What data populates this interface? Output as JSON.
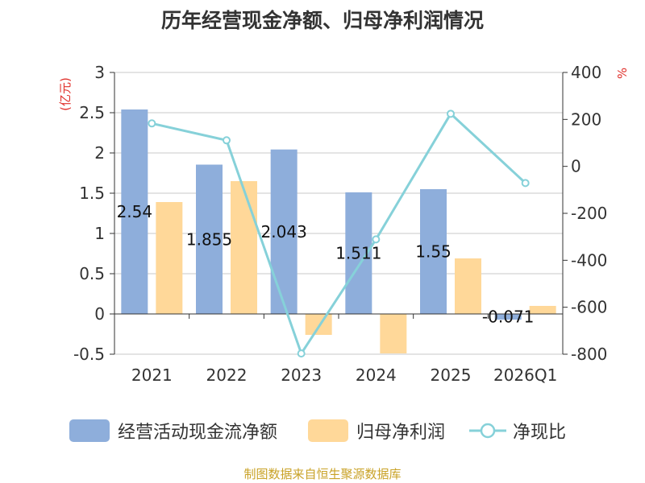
{
  "chart_data": {
    "type": "bar+line",
    "title": "历年经营现金净额、归母净利润情况",
    "categories": [
      "2021",
      "2022",
      "2023",
      "2024",
      "2025",
      "2026Q1"
    ],
    "series": [
      {
        "name": "经营活动现金流净额",
        "type": "bar",
        "axis": "left",
        "color": "#8eaedb",
        "values": [
          2.54,
          1.855,
          2.043,
          1.511,
          1.55,
          -0.071
        ],
        "labels": [
          "2.54",
          "1.855",
          "2.043",
          "1.511",
          "1.55",
          "-0.071"
        ]
      },
      {
        "name": "归母净利润",
        "type": "bar",
        "axis": "left",
        "color": "#ffd899",
        "values": [
          1.39,
          1.65,
          -0.26,
          -0.49,
          0.69,
          0.1
        ]
      },
      {
        "name": "净现比",
        "type": "line",
        "axis": "right",
        "color": "#86d1d9",
        "values": [
          183,
          111,
          -797,
          -311,
          224,
          -71
        ]
      }
    ],
    "left_axis": {
      "unit_label": "(亿元)",
      "min": -0.5,
      "max": 3,
      "ticks": [
        "-0.5",
        "0",
        "0.5",
        "1",
        "1.5",
        "2",
        "2.5",
        "3"
      ]
    },
    "right_axis": {
      "unit_label": "%",
      "min": -800,
      "max": 400,
      "ticks": [
        "-800",
        "-600",
        "-400",
        "-200",
        "0",
        "200",
        "400"
      ]
    },
    "grid": true,
    "legend_position": "bottom"
  },
  "source_text": "制图数据来自恒生聚源数据库"
}
